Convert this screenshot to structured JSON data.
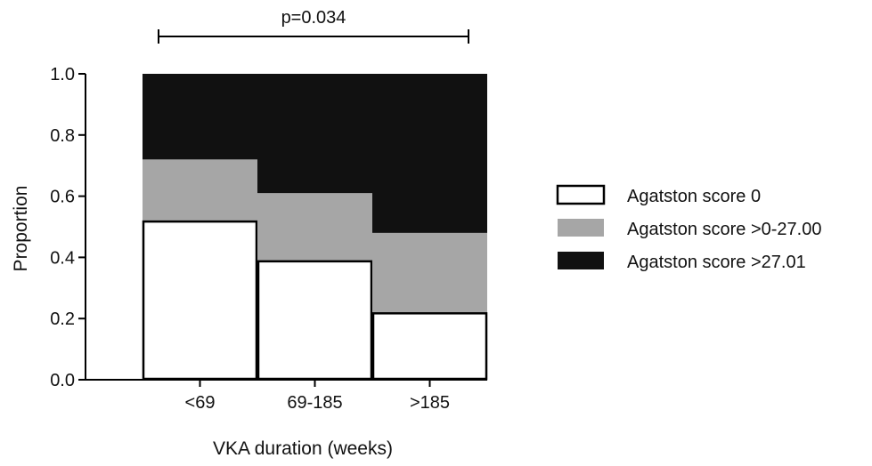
{
  "chart_data": {
    "type": "bar",
    "stacked": true,
    "title": "",
    "xlabel": "VKA duration (weeks)",
    "ylabel": "Proportion",
    "ylim": [
      0,
      1.0
    ],
    "yticks": [
      "0.0",
      "0.2",
      "0.4",
      "0.6",
      "0.8",
      "1.0"
    ],
    "categories": [
      "<69",
      "69-185",
      ">185"
    ],
    "series": [
      {
        "name": "Agatston score 0",
        "values": [
          0.52,
          0.39,
          0.22
        ],
        "color": "#ffffff"
      },
      {
        "name": "Agatston score >0-27.00",
        "values": [
          0.2,
          0.22,
          0.26
        ],
        "color": "#a6a6a6"
      },
      {
        "name": "Agatston score >27.01",
        "values": [
          0.28,
          0.39,
          0.52
        ],
        "color": "#111111"
      }
    ],
    "annotation": {
      "text": "p=0.034",
      "from_category": "<69",
      "to_category": ">185"
    },
    "legend_position": "right",
    "grid": false
  }
}
